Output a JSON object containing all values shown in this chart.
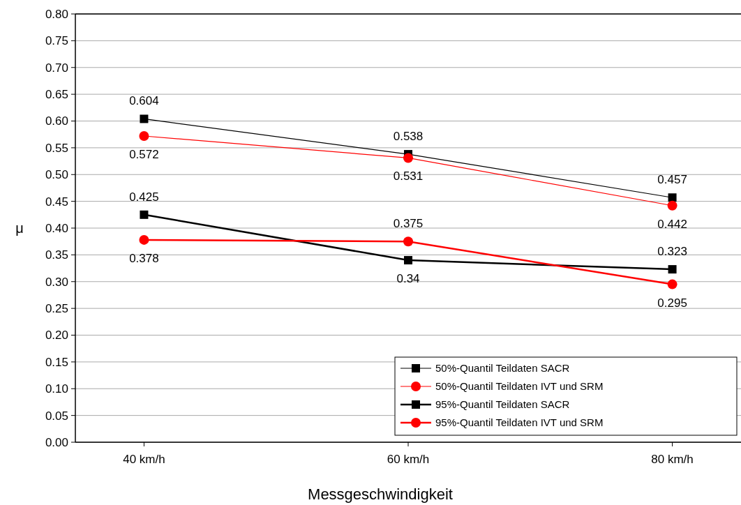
{
  "chart_data": {
    "type": "line",
    "xlabel": "Messgeschwindigkeit",
    "ylabel": "μ",
    "categories": [
      "40 km/h",
      "60 km/h",
      "80 km/h"
    ],
    "series": [
      {
        "name": "50%-Quantil Teildaten SACR",
        "color": "#000000",
        "marker": "square",
        "values": [
          0.604,
          0.538,
          0.457
        ]
      },
      {
        "name": "50%-Quantil Teildaten IVT und SRM",
        "color": "#ff0000",
        "marker": "circle",
        "values": [
          0.572,
          0.531,
          0.442
        ]
      },
      {
        "name": "95%-Quantil Teildaten SACR",
        "color": "#000000",
        "marker": "square",
        "values": [
          0.425,
          0.34,
          0.323
        ]
      },
      {
        "name": "95%-Quantil Teildaten IVT und SRM",
        "color": "#ff0000",
        "marker": "circle",
        "values": [
          0.378,
          0.375,
          0.295
        ]
      }
    ],
    "ylim": [
      0,
      0.8
    ],
    "yticks": [
      {
        "value": 0,
        "label": "0.00"
      },
      {
        "value": 0.05,
        "label": "0.05"
      },
      {
        "value": 0.1,
        "label": "0.10"
      },
      {
        "value": 0.15,
        "label": "0.15"
      },
      {
        "value": 0.2,
        "label": "0.20"
      },
      {
        "value": 0.25,
        "label": "0.25"
      },
      {
        "value": 0.3,
        "label": "0.30"
      },
      {
        "value": 0.35,
        "label": "0.35"
      },
      {
        "value": 0.4,
        "label": "0.40"
      },
      {
        "value": 0.45,
        "label": "0.45"
      },
      {
        "value": 0.5,
        "label": "0.50"
      },
      {
        "value": 0.55,
        "label": "0.55"
      },
      {
        "value": 0.6,
        "label": "0.60"
      },
      {
        "value": 0.65,
        "label": "0.65"
      },
      {
        "value": 0.7,
        "label": "0.70"
      },
      {
        "value": 0.75,
        "label": "0.75"
      },
      {
        "value": 0.8,
        "label": "0.80"
      }
    ],
    "grid": "y",
    "legend": "bottom right",
    "data_labels": true,
    "line_style": "solid"
  }
}
